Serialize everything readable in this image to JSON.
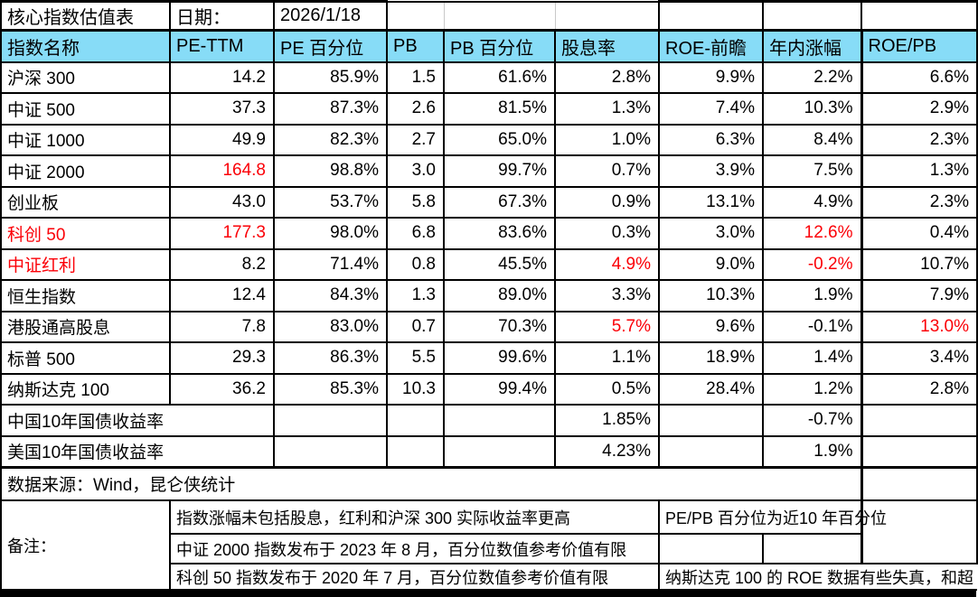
{
  "meta": {
    "title": "核心指数估值表",
    "date_label": "日期：",
    "date_value": "2026/1/18"
  },
  "header": {
    "columns": [
      "指数名称",
      "PE-TTM",
      "PE 百分位",
      "PB",
      "PB 百分位",
      "股息率",
      "ROE-前瞻",
      "年内涨幅",
      "ROE/PB"
    ]
  },
  "rows": [
    {
      "cells": [
        {
          "v": "沪深 300"
        },
        {
          "v": "14.2"
        },
        {
          "v": "85.9%"
        },
        {
          "v": "1.5"
        },
        {
          "v": "61.6%"
        },
        {
          "v": "2.8%"
        },
        {
          "v": "9.9%"
        },
        {
          "v": "2.2%"
        },
        {
          "v": "6.6%"
        }
      ]
    },
    {
      "cells": [
        {
          "v": "中证 500"
        },
        {
          "v": "37.3"
        },
        {
          "v": "87.3%"
        },
        {
          "v": "2.6"
        },
        {
          "v": "81.5%"
        },
        {
          "v": "1.3%"
        },
        {
          "v": "7.4%"
        },
        {
          "v": "10.3%"
        },
        {
          "v": "2.9%"
        }
      ]
    },
    {
      "cells": [
        {
          "v": "中证 1000"
        },
        {
          "v": "49.9"
        },
        {
          "v": "82.3%"
        },
        {
          "v": "2.7"
        },
        {
          "v": "65.0%"
        },
        {
          "v": "1.0%"
        },
        {
          "v": "6.3%"
        },
        {
          "v": "8.4%"
        },
        {
          "v": "2.3%"
        }
      ]
    },
    {
      "cells": [
        {
          "v": "中证 2000"
        },
        {
          "v": "164.8",
          "red": true
        },
        {
          "v": "98.8%"
        },
        {
          "v": "3.0"
        },
        {
          "v": "99.7%"
        },
        {
          "v": "0.7%"
        },
        {
          "v": "3.9%"
        },
        {
          "v": "7.5%"
        },
        {
          "v": "1.3%"
        }
      ]
    },
    {
      "cells": [
        {
          "v": "创业板"
        },
        {
          "v": "43.0"
        },
        {
          "v": "53.7%"
        },
        {
          "v": "5.8"
        },
        {
          "v": "67.3%"
        },
        {
          "v": "0.9%"
        },
        {
          "v": "13.1%"
        },
        {
          "v": "4.9%"
        },
        {
          "v": "2.3%"
        }
      ]
    },
    {
      "cells": [
        {
          "v": "科创 50",
          "red": true
        },
        {
          "v": "177.3",
          "red": true
        },
        {
          "v": "98.0%"
        },
        {
          "v": "6.8"
        },
        {
          "v": "83.6%"
        },
        {
          "v": "0.3%"
        },
        {
          "v": "3.0%"
        },
        {
          "v": "12.6%",
          "red": true
        },
        {
          "v": "0.4%"
        }
      ]
    },
    {
      "cells": [
        {
          "v": "中证红利",
          "red": true
        },
        {
          "v": "8.2"
        },
        {
          "v": "71.4%"
        },
        {
          "v": "0.8"
        },
        {
          "v": "45.5%"
        },
        {
          "v": "4.9%",
          "red": true
        },
        {
          "v": "9.0%"
        },
        {
          "v": "-0.2%",
          "red": true
        },
        {
          "v": "10.7%"
        }
      ]
    },
    {
      "cells": [
        {
          "v": "恒生指数"
        },
        {
          "v": "12.4"
        },
        {
          "v": "84.3%"
        },
        {
          "v": "1.3"
        },
        {
          "v": "89.0%"
        },
        {
          "v": "3.3%"
        },
        {
          "v": "10.3%"
        },
        {
          "v": "1.9%"
        },
        {
          "v": "7.9%"
        }
      ]
    },
    {
      "cells": [
        {
          "v": "港股通高股息"
        },
        {
          "v": "7.8"
        },
        {
          "v": "83.0%"
        },
        {
          "v": "0.7"
        },
        {
          "v": "70.3%"
        },
        {
          "v": "5.7%",
          "red": true
        },
        {
          "v": "9.6%"
        },
        {
          "v": "-0.1%"
        },
        {
          "v": "13.0%",
          "red": true
        }
      ]
    },
    {
      "cells": [
        {
          "v": "标普 500"
        },
        {
          "v": "29.3"
        },
        {
          "v": "86.3%"
        },
        {
          "v": "5.5"
        },
        {
          "v": "99.6%"
        },
        {
          "v": "1.1%"
        },
        {
          "v": "18.9%"
        },
        {
          "v": "1.4%"
        },
        {
          "v": "3.4%"
        }
      ]
    },
    {
      "cells": [
        {
          "v": "纳斯达克 100"
        },
        {
          "v": "36.2"
        },
        {
          "v": "85.3%"
        },
        {
          "v": "10.3"
        },
        {
          "v": "99.4%"
        },
        {
          "v": "0.5%"
        },
        {
          "v": "28.4%"
        },
        {
          "v": "1.2%"
        },
        {
          "v": "2.8%"
        }
      ]
    },
    {
      "cells": [
        {
          "v": "中国10年国债收益率",
          "span": 2
        },
        {
          "v": ""
        },
        {
          "v": ""
        },
        {
          "v": ""
        },
        {
          "v": "1.85%"
        },
        {
          "v": ""
        },
        {
          "v": "-0.7%"
        },
        {
          "v": ""
        }
      ]
    },
    {
      "cells": [
        {
          "v": "美国10年国债收益率",
          "span": 2
        },
        {
          "v": ""
        },
        {
          "v": ""
        },
        {
          "v": ""
        },
        {
          "v": "4.23%"
        },
        {
          "v": ""
        },
        {
          "v": "1.9%"
        },
        {
          "v": ""
        }
      ]
    }
  ],
  "source": "数据来源：Wind，昆仑侠统计",
  "notes": {
    "label": "备注：",
    "items": [
      "指数涨幅未包括股息，红利和沪深 300 实际收益率更高",
      "中证 2000 指数发布于 2023 年 8 月，百分位数值参考价值有限",
      "科创 50 指数发布于 2020 年 7 月，百分位数值参考价值有限"
    ],
    "right_top": "PE/PB 百分位为近10 年百分位",
    "right_bottom": "纳斯达克 100 的 ROE 数据有些失真，和超"
  },
  "colors": {
    "header_bg": "#87DCF7",
    "alert_red": "#FB0007"
  }
}
